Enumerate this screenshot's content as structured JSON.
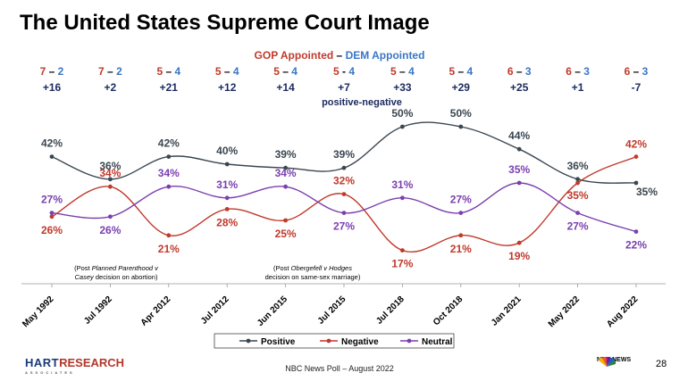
{
  "title": "The United States Supreme Court Image",
  "appointed_header": {
    "gop": "GOP Appointed",
    "sep": " – ",
    "dem": "DEM Appointed"
  },
  "annotations": {
    "net_label": "positive-negative",
    "note1_line1_pre": "(Post ",
    "note1_line1_em": "Planned Parenthood v",
    "note1_line2_em": "Casey",
    "note1_line2_post": " decision on abortion)",
    "note2_line1_pre": "(Post ",
    "note2_line1_em": "Obergefell v Hodges",
    "note2_line1_post": "",
    "note2_line2": "decision on same-sex marriage)"
  },
  "footer": {
    "source": "NBC News Poll – August 2022",
    "page": "28",
    "logo_hart": "HART",
    "logo_research": "RESEARCH",
    "logo_assoc": "ASSOCIATES",
    "nbc": "NBC NEWS"
  },
  "colors": {
    "positive": "#3a4650",
    "negative": "#c0392b",
    "neutral": "#7a3fb0",
    "gop": "#c0392b",
    "dem": "#3a76c4",
    "net": "#1b2a5e"
  },
  "chart_data": {
    "type": "line",
    "categories": [
      "May 1992",
      "Jul 1992",
      "Apr 2012",
      "Jul 2012",
      "Jun 2015",
      "Jul 2015",
      "Jul 2018",
      "Oct 2018",
      "Jan 2021",
      "May 2022",
      "Aug 2022"
    ],
    "court_split": [
      {
        "gop": "7",
        "sep": " – ",
        "dem": "2"
      },
      {
        "gop": "7",
        "sep": " – ",
        "dem": "2"
      },
      {
        "gop": "5",
        "sep": " – ",
        "dem": "4"
      },
      {
        "gop": "5",
        "sep": " – ",
        "dem": "4"
      },
      {
        "gop": "5",
        "sep": " – ",
        "dem": "4"
      },
      {
        "gop": "5",
        "sep": " - ",
        "dem": "4"
      },
      {
        "gop": "5",
        "sep": " – ",
        "dem": "4"
      },
      {
        "gop": "5",
        "sep": " – ",
        "dem": "4"
      },
      {
        "gop": "6",
        "sep": " – ",
        "dem": "3"
      },
      {
        "gop": "6",
        "sep": " – ",
        "dem": "3"
      },
      {
        "gop": "6",
        "sep": " – ",
        "dem": "3"
      }
    ],
    "net": [
      "+16",
      "+2",
      "+21",
      "+12",
      "+14",
      "+7",
      "+33",
      "+29",
      "+25",
      "+1",
      "-7"
    ],
    "series": [
      {
        "name": "Positive",
        "values": [
          42,
          36,
          42,
          40,
          39,
          39,
          50,
          50,
          44,
          36,
          35
        ]
      },
      {
        "name": "Negative",
        "values": [
          26,
          34,
          21,
          28,
          25,
          32,
          17,
          21,
          19,
          35,
          42
        ]
      },
      {
        "name": "Neutral",
        "values": [
          27,
          26,
          34,
          31,
          34,
          27,
          31,
          27,
          35,
          27,
          22
        ]
      }
    ],
    "value_suffix": "%",
    "legend_position": "bottom",
    "grid": false
  }
}
